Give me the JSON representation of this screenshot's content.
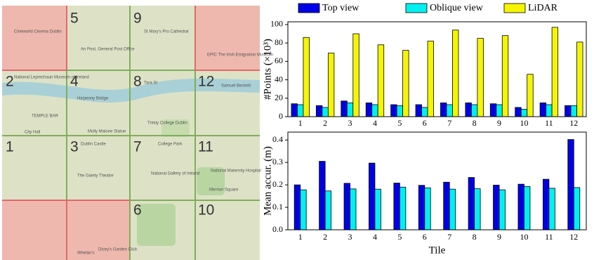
{
  "map": {
    "tiles": [
      "5",
      "9",
      "2",
      "4",
      "8",
      "12",
      "1",
      "3",
      "7",
      "11",
      "6",
      "10"
    ],
    "places": [
      "Cineworld Cinema Dublin",
      "An Post, General Post Office",
      "St Mary's Pro Cathedral",
      "EPIC The Irish Emigration Museum",
      "National Leprechaun Museum of Ireland",
      "Ha'penny Bridge",
      "Tara St",
      "Samuel Beckett",
      "TEMPLE BAR",
      "City Hall",
      "Molly Malone Statue",
      "Trinity College Dublin",
      "Dublin Castle",
      "College Park",
      "The Gaiety Theatre",
      "National Gallery of Ireland",
      "National Maternity Hospital",
      "Merrion Square",
      "Whelan's",
      "Dicey's Garden Club"
    ]
  },
  "chart_data": [
    {
      "type": "bar",
      "ylabel": "#Points (×10³)",
      "categories": [
        "1",
        "2",
        "3",
        "4",
        "5",
        "6",
        "7",
        "8",
        "9",
        "10",
        "11",
        "12"
      ],
      "series": [
        {
          "name": "Top view",
          "color": "#0000e6",
          "values": [
            14,
            12,
            17,
            15,
            13,
            13,
            15,
            15,
            14,
            10,
            15,
            12
          ]
        },
        {
          "name": "Oblique view",
          "color": "#00f0f0",
          "values": [
            13,
            10,
            15,
            13,
            12,
            10,
            13,
            13,
            13,
            8,
            13,
            12
          ]
        },
        {
          "name": "LiDAR",
          "color": "#f5f500",
          "values": [
            86,
            69,
            90,
            78,
            72,
            82,
            94,
            85,
            88,
            46,
            97,
            81
          ]
        }
      ],
      "ylim": [
        0,
        103
      ],
      "yticks": [
        0,
        20,
        40,
        60,
        80,
        100
      ],
      "legend": "top"
    },
    {
      "type": "bar",
      "ylabel": "Mean accur. (m)",
      "xlabel": "Tile",
      "categories": [
        "1",
        "2",
        "3",
        "4",
        "5",
        "6",
        "7",
        "8",
        "9",
        "10",
        "11",
        "12"
      ],
      "series": [
        {
          "color": "#0000e6",
          "values": [
            0.2,
            0.305,
            0.207,
            0.297,
            0.208,
            0.198,
            0.212,
            0.233,
            0.199,
            0.203,
            0.225,
            0.402
          ]
        },
        {
          "color": "#00f0f0",
          "values": [
            0.178,
            0.173,
            0.182,
            0.181,
            0.19,
            0.187,
            0.181,
            0.183,
            0.178,
            0.193,
            0.185,
            0.188
          ]
        }
      ],
      "ylim": [
        0,
        0.435
      ],
      "yticks": [
        {
          "value": 0,
          "label": "0.0"
        },
        0.1,
        0.2,
        0.3,
        0.4
      ]
    }
  ]
}
